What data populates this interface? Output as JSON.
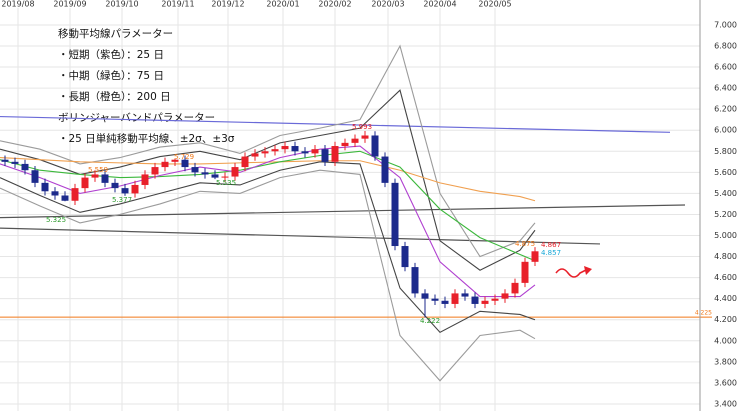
{
  "chart_data": {
    "type": "candlestick",
    "notes": [
      "移動平均線パラメーター",
      "・短期（紫色）：25 日",
      "・中期（緑色）：75 日",
      "・長期（橙色）：200 日",
      "ボリンジャーバンドパラメーター",
      "・25 日単純移動平均線、±2σ、±3σ"
    ],
    "xlim": [
      0,
      140
    ],
    "xticks": [
      {
        "value": 3.6,
        "label": "2019/08"
      },
      {
        "value": 14,
        "label": "2019/09"
      },
      {
        "value": 24.4,
        "label": "2019/10"
      },
      {
        "value": 35.6,
        "label": "2019/11"
      },
      {
        "value": 45.6,
        "label": "2019/12"
      },
      {
        "value": 56.6,
        "label": "2020/01"
      },
      {
        "value": 67,
        "label": "2020/02"
      },
      {
        "value": 77.6,
        "label": "2020/03"
      },
      {
        "value": 88,
        "label": "2020/04"
      },
      {
        "value": 99,
        "label": "2020/05"
      }
    ],
    "ylim": [
      3.333,
      7.237
    ],
    "yticks": [
      {
        "value": 3.4,
        "label": "3.400"
      },
      {
        "value": 3.6,
        "label": "3.600"
      },
      {
        "value": 3.8,
        "label": "3.800"
      },
      {
        "value": 4,
        "label": "4.000"
      },
      {
        "value": 4.2,
        "label": "4.200"
      },
      {
        "value": 4.4,
        "label": "4.400"
      },
      {
        "value": 4.6,
        "label": "4.600"
      },
      {
        "value": 4.8,
        "label": "4.800"
      },
      {
        "value": 5,
        "label": "5.000"
      },
      {
        "value": 5.2,
        "label": "5.200"
      },
      {
        "value": 5.4,
        "label": "5.400"
      },
      {
        "value": 5.6,
        "label": "5.600"
      },
      {
        "value": 5.8,
        "label": "5.800"
      },
      {
        "value": 6,
        "label": "6.000"
      },
      {
        "value": 6.2,
        "label": "6.200"
      },
      {
        "value": 6.4,
        "label": "6.400"
      },
      {
        "value": 6.6,
        "label": "6.600"
      },
      {
        "value": 6.8,
        "label": "6.800"
      },
      {
        "value": 7,
        "label": "7.000"
      }
    ],
    "grid": true,
    "up_color": "#e8202a",
    "down_color": "#1c2a8c",
    "candles": {
      "x": [
        1,
        3,
        5,
        7,
        9,
        11,
        13,
        15,
        17,
        19,
        21,
        23,
        25,
        27,
        29,
        31,
        33,
        35,
        37,
        39,
        41,
        43,
        45,
        47,
        49,
        51,
        53,
        55,
        57,
        59,
        61,
        63,
        65,
        67,
        69,
        71,
        73,
        75,
        77,
        79,
        81,
        83,
        85,
        87,
        89,
        91,
        93,
        95,
        97,
        99,
        101,
        103,
        105,
        107
      ],
      "open": [
        5.72,
        5.7,
        5.68,
        5.62,
        5.5,
        5.42,
        5.38,
        5.33,
        5.45,
        5.55,
        5.58,
        5.5,
        5.45,
        5.4,
        5.48,
        5.58,
        5.65,
        5.7,
        5.72,
        5.65,
        5.6,
        5.58,
        5.55,
        5.56,
        5.65,
        5.75,
        5.78,
        5.8,
        5.82,
        5.85,
        5.8,
        5.78,
        5.82,
        5.7,
        5.85,
        5.88,
        5.92,
        5.95,
        5.75,
        5.5,
        4.9,
        4.7,
        4.45,
        4.4,
        4.38,
        4.35,
        4.45,
        4.42,
        4.35,
        4.38,
        4.4,
        4.45,
        4.55,
        4.75
      ],
      "high": [
        5.76,
        5.74,
        5.72,
        5.66,
        5.54,
        5.46,
        5.42,
        5.49,
        5.59,
        5.62,
        5.62,
        5.54,
        5.49,
        5.52,
        5.62,
        5.69,
        5.74,
        5.729,
        5.76,
        5.69,
        5.64,
        5.62,
        5.6,
        5.69,
        5.79,
        5.82,
        5.84,
        5.86,
        5.89,
        5.89,
        5.84,
        5.86,
        5.86,
        5.89,
        5.92,
        5.96,
        5.993,
        5.99,
        5.79,
        5.54,
        4.94,
        4.74,
        4.49,
        4.44,
        4.42,
        4.49,
        4.49,
        4.46,
        4.42,
        4.44,
        4.49,
        4.59,
        4.79,
        4.89
      ],
      "low": [
        5.66,
        5.64,
        5.58,
        5.46,
        5.38,
        5.34,
        5.325,
        5.29,
        5.41,
        5.51,
        5.46,
        5.41,
        5.377,
        5.36,
        5.44,
        5.54,
        5.61,
        5.66,
        5.61,
        5.56,
        5.54,
        5.535,
        5.51,
        5.52,
        5.61,
        5.71,
        5.74,
        5.76,
        5.78,
        5.76,
        5.74,
        5.74,
        5.66,
        5.66,
        5.81,
        5.84,
        5.88,
        5.71,
        5.46,
        4.86,
        4.66,
        4.41,
        4.222,
        4.34,
        4.31,
        4.31,
        4.38,
        4.31,
        4.31,
        4.34,
        4.36,
        4.41,
        4.51,
        4.71
      ],
      "close": [
        5.7,
        5.68,
        5.62,
        5.5,
        5.42,
        5.38,
        5.33,
        5.45,
        5.55,
        5.58,
        5.5,
        5.45,
        5.4,
        5.48,
        5.58,
        5.65,
        5.7,
        5.72,
        5.65,
        5.6,
        5.58,
        5.55,
        5.56,
        5.65,
        5.75,
        5.78,
        5.8,
        5.82,
        5.85,
        5.8,
        5.78,
        5.82,
        5.7,
        5.85,
        5.88,
        5.92,
        5.95,
        5.75,
        5.5,
        4.9,
        4.7,
        4.45,
        4.4,
        4.38,
        4.35,
        4.45,
        4.42,
        4.35,
        4.38,
        4.4,
        4.45,
        4.55,
        4.75,
        4.85
      ]
    },
    "x": [
      0,
      8,
      16,
      24,
      32,
      40,
      48,
      56,
      64,
      72,
      80,
      88,
      96,
      104,
      107
    ],
    "lines": [
      {
        "color": "#9b9b9b",
        "values": [
          5.9,
          5.82,
          5.68,
          5.74,
          5.84,
          5.88,
          5.78,
          5.95,
          6.02,
          6.1,
          6.8,
          5.4,
          4.8,
          4.95,
          5.12
        ]
      },
      {
        "color": "#9b9b9b",
        "values": [
          5.45,
          5.28,
          5.12,
          5.2,
          5.3,
          5.42,
          5.4,
          5.55,
          5.62,
          5.58,
          4.05,
          3.62,
          4.05,
          4.1,
          4.02
        ]
      },
      {
        "color": "#444444",
        "values": [
          5.82,
          5.72,
          5.58,
          5.65,
          5.75,
          5.8,
          5.72,
          5.88,
          5.95,
          6.02,
          6.38,
          4.95,
          4.67,
          4.86,
          5.05
        ]
      },
      {
        "color": "#444444",
        "values": [
          5.55,
          5.38,
          5.22,
          5.3,
          5.4,
          5.5,
          5.48,
          5.62,
          5.7,
          5.68,
          4.5,
          4.08,
          4.28,
          4.25,
          4.2
        ]
      },
      {
        "color": "#f0a050",
        "values": [
          5.74,
          5.72,
          5.7,
          5.69,
          5.68,
          5.68,
          5.69,
          5.7,
          5.71,
          5.71,
          5.62,
          5.5,
          5.42,
          5.37,
          5.33
        ]
      },
      {
        "color": "#3cb83c",
        "values": [
          5.72,
          5.62,
          5.58,
          5.55,
          5.56,
          5.58,
          5.62,
          5.7,
          5.76,
          5.8,
          5.65,
          5.25,
          4.98,
          4.82,
          4.76
        ]
      },
      {
        "color": "#b040d0",
        "values": [
          5.68,
          5.55,
          5.4,
          5.47,
          5.57,
          5.65,
          5.6,
          5.74,
          5.82,
          5.85,
          5.55,
          4.75,
          4.42,
          4.42,
          4.53
        ]
      }
    ],
    "trendlines": [
      {
        "color": "#6a6ad8",
        "x": [
          0,
          134
        ],
        "values": [
          6.13,
          5.98
        ]
      },
      {
        "color": "#555555",
        "x": [
          0,
          137
        ],
        "values": [
          5.17,
          5.29
        ]
      },
      {
        "color": "#555555",
        "x": [
          0,
          120
        ],
        "values": [
          5.07,
          4.92
        ]
      }
    ],
    "hline": {
      "color": "#f07818",
      "value": 4.225,
      "label": "4.225"
    },
    "annotations": [
      {
        "text": "5.993",
        "color": "#e8202a"
      },
      {
        "text": "5.729",
        "color": "#f07818"
      },
      {
        "text": "5.559",
        "color": "#f07818"
      },
      {
        "text": "5.535",
        "color": "#2a9a2a"
      },
      {
        "text": "5.377",
        "color": "#2a9a2a"
      },
      {
        "text": "5.325",
        "color": "#2a9a2a"
      },
      {
        "text": "4.222",
        "color": "#2a9a2a"
      },
      {
        "text": "4.875",
        "color": "#f07818"
      },
      {
        "text": "4.867",
        "color": "#e8202a"
      },
      {
        "text": "4.857",
        "color": "#18a8d8"
      }
    ]
  }
}
